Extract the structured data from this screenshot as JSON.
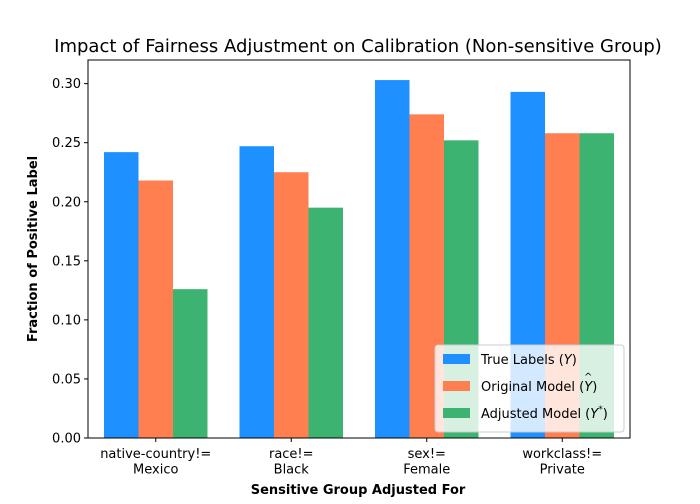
{
  "chart_data": {
    "type": "bar",
    "title": "Impact of Fairness Adjustment on Calibration (Non-sensitive Group)",
    "xlabel": "Sensitive Group Adjusted For",
    "ylabel": "Fraction of Positive Label",
    "ylim": [
      0,
      0.32
    ],
    "yticks": [
      "0.00",
      "0.05",
      "0.10",
      "0.15",
      "0.20",
      "0.25",
      "0.30"
    ],
    "ytick_values": [
      0,
      0.05,
      0.1,
      0.15,
      0.2,
      0.25,
      0.3
    ],
    "categories": [
      [
        "native-country!=",
        "Mexico"
      ],
      [
        "race!=",
        "Black"
      ],
      [
        "sex!=",
        "Female"
      ],
      [
        "workclass!=",
        "Private"
      ]
    ],
    "series": [
      {
        "name": "True Labels (Y)",
        "name_main": "True Labels (",
        "name_sym": "Y",
        "name_mark": "",
        "name_end": ")",
        "color": "#1E90FF",
        "values": [
          0.242,
          0.247,
          0.303,
          0.293
        ]
      },
      {
        "name": "Original Model (Ŷ)",
        "name_main": "Original Model (",
        "name_sym": "Y",
        "name_mark": "^",
        "name_end": ")",
        "color": "#FF7F50",
        "values": [
          0.218,
          0.225,
          0.274,
          0.258
        ]
      },
      {
        "name": "Adjusted Model (Y*)",
        "name_main": "Adjusted Model (",
        "name_sym": "Y",
        "name_mark": "*",
        "name_end": ")",
        "color": "#3CB371",
        "values": [
          0.126,
          0.195,
          0.252,
          0.258
        ]
      }
    ],
    "grid": false,
    "legend_position": "bottom-right"
  }
}
